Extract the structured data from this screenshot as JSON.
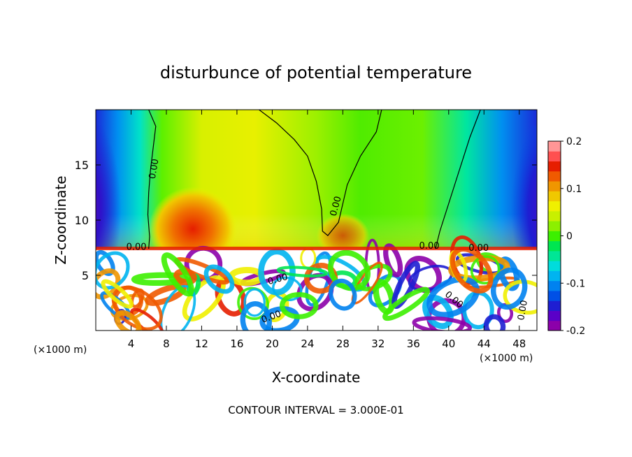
{
  "chart_data": {
    "type": "heatmap",
    "title": "disturbunce of potential temperature",
    "xlabel": "X-coordinate",
    "ylabel": "Z-coordinate",
    "x_unit": "(×1000 m)",
    "xlim": [
      0,
      50
    ],
    "ylim": [
      0,
      20
    ],
    "x_ticks": [
      4,
      8,
      12,
      16,
      20,
      24,
      28,
      32,
      36,
      40,
      44,
      48
    ],
    "x_tick_labels": [
      "4",
      "8",
      "12",
      "16",
      "20",
      "24",
      "28",
      "32",
      "36",
      "40",
      "44",
      "48"
    ],
    "y_ticks": [
      5,
      10,
      15
    ],
    "y_tick_labels": [
      "5",
      "10",
      "15"
    ],
    "colorbar": {
      "range": [
        -0.2,
        0.2
      ],
      "ticks": [
        -0.2,
        -0.1,
        0,
        0.1,
        0.2
      ],
      "tick_labels": [
        "-0.2",
        "-0.1",
        "0",
        "0.1",
        "0.2"
      ],
      "colors": [
        "#8c00aa",
        "#5a00c8",
        "#1e1ed2",
        "#0050e6",
        "#0082f0",
        "#00b4f0",
        "#00dcdc",
        "#00e696",
        "#00e650",
        "#3cf000",
        "#8cf000",
        "#c8f000",
        "#f0f000",
        "#f0c800",
        "#f09600",
        "#f05a00",
        "#e61e00",
        "#ff5050",
        "#ff9696"
      ]
    },
    "contour_labels": [
      "0.00",
      "0.00",
      "0.00",
      "0.00",
      "0.00",
      "0.00",
      "0.00",
      "0.00",
      "0.00"
    ],
    "footer": "CONTOUR INTERVAL = 3.000E-01",
    "interface_height": 7.4,
    "zero_contours_x_upper": [
      {
        "x": [
          6.0,
          6.8,
          6.5,
          6.2,
          6.0,
          5.9,
          6.1,
          6.0
        ],
        "z": [
          20,
          18.5,
          16.5,
          14.5,
          12.5,
          10.5,
          8.5,
          7.4
        ]
      },
      {
        "x": [
          18.5,
          20.5,
          22.5,
          24.0,
          25.0,
          25.6,
          25.7,
          26.3,
          27.5,
          28.5,
          30.0,
          31.8,
          32.4
        ],
        "z": [
          20,
          18.8,
          17.3,
          15.8,
          13.5,
          11.0,
          9.0,
          8.6,
          9.8,
          13.2,
          15.8,
          18.0,
          20
        ]
      },
      {
        "x": [
          43.6,
          42.4,
          41.2,
          40.0,
          39.0,
          38.5
        ],
        "z": [
          20,
          17.5,
          14.5,
          11.5,
          9.0,
          7.4
        ]
      }
    ]
  }
}
